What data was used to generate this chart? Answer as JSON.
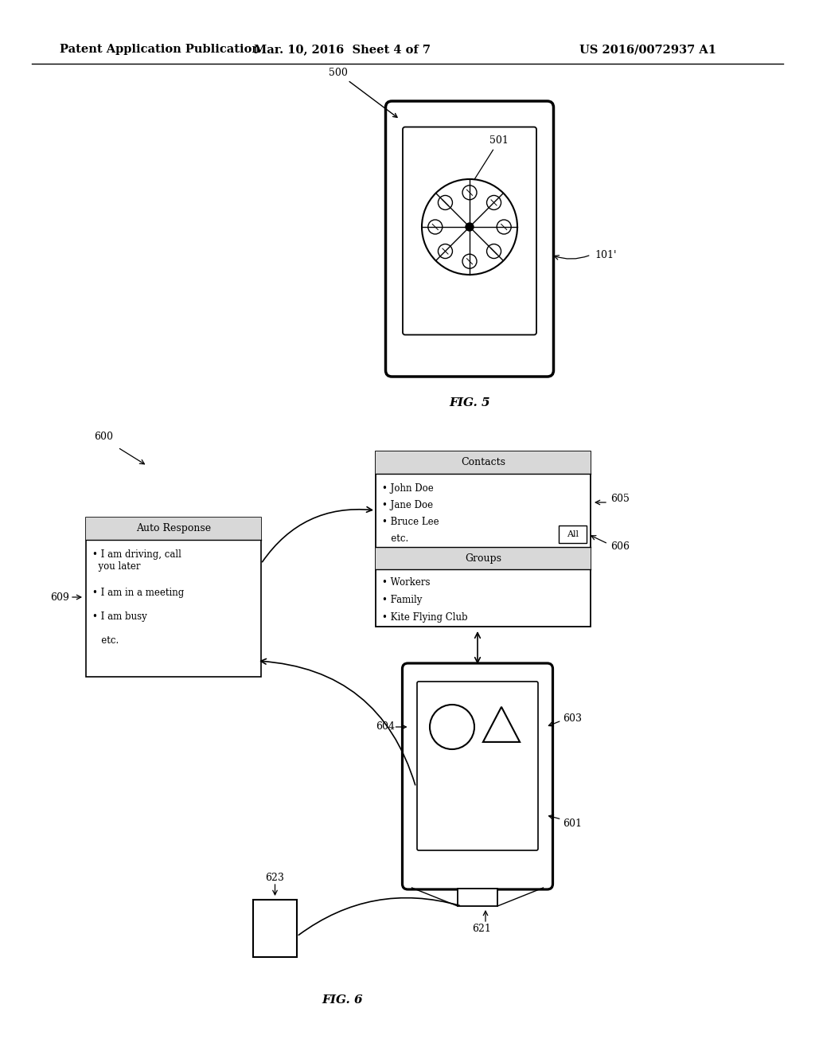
{
  "bg_color": "#ffffff",
  "header_left": "Patent Application Publication",
  "header_mid": "Mar. 10, 2016  Sheet 4 of 7",
  "header_right": "US 2016/0072937 A1",
  "fig5_label": "FIG. 5",
  "fig6_label": "FIG. 6",
  "contacts_title": "Contacts",
  "contacts_items": [
    "• John Doe",
    "• Jane Doe",
    "• Bruce Lee",
    "   etc."
  ],
  "contacts_all_btn": "All",
  "groups_title": "Groups",
  "groups_items": [
    "• Workers",
    "• Family",
    "• Kite Flying Club"
  ],
  "auto_response_title": "Auto Response",
  "auto_response_items": [
    "• I am driving, call\n  you later",
    "• I am in a meeting",
    "• I am busy",
    "   etc."
  ],
  "label_500": "500",
  "label_501": "501",
  "label_101p": "101'",
  "label_600": "600",
  "label_601": "601",
  "label_603": "603",
  "label_604": "604",
  "label_605": "605",
  "label_606": "606",
  "label_609": "609",
  "label_621": "621",
  "label_623": "623"
}
